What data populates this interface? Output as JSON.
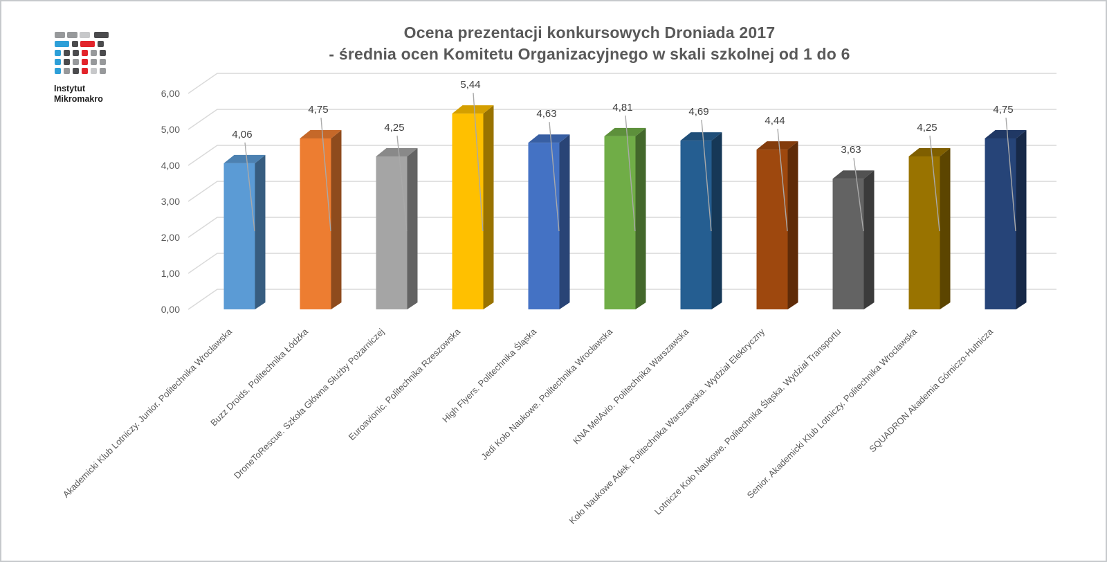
{
  "header": {
    "title_line1": "Ocena prezentacji konkursowych Droniada 2017",
    "title_line2": "- średnia ocen Komitetu Organizacyjnego w skali szkolnej od 1 do 6"
  },
  "logo": {
    "text_line1": "Instytut",
    "text_line2": "Mikromakro",
    "colors": {
      "blue": "#2d9fd8",
      "red": "#e2242b",
      "dark": "#4b4b4d",
      "mid": "#97999b",
      "light": "#c7c8ca"
    }
  },
  "chart_data": {
    "type": "bar",
    "style": "3d-column",
    "title": "Ocena prezentacji konkursowych Droniada 2017 - średnia ocen Komitetu Organizacyjnego w skali szkolnej od 1 do 6",
    "categories": [
      "Akademicki Klub Lotniczy. Junior. Politechnika Wrocławska",
      "Buzz Droids. Politechnika Łódzka",
      "DroneToRescue. Szkoła Główna Służby Pożarniczej",
      "Euroavionic. Politechnika Rzeszowska",
      "High Flyers. Politechnika Śląska",
      "Jedi Koło Naukowe. Politechnika Wrocławska",
      "KNA MelAvio. Politechnika Warszawska",
      "Koło Naukowe Adek. Politechnika Warszawska. Wydział Elektryczny",
      "Lotnicze Koło Naukowe. Politechnika Śląska. Wydział Transportu",
      "Senior. Akademicki Klub Lotniczy. Politechnika Wrocławska",
      "SQUADRON Akademia Górniczo-Hutnicza"
    ],
    "values": [
      4.06,
      4.75,
      4.25,
      5.44,
      4.63,
      4.81,
      4.69,
      4.44,
      3.63,
      4.25,
      4.75
    ],
    "value_labels": [
      "4,06",
      "4,75",
      "4,25",
      "5,44",
      "4,63",
      "4,81",
      "4,69",
      "4,44",
      "3,63",
      "4,25",
      "4,75"
    ],
    "bar_colors": [
      "#5B9BD5",
      "#ED7D31",
      "#A5A5A5",
      "#FFC000",
      "#4472C4",
      "#70AD47",
      "#255E91",
      "#9E480E",
      "#636363",
      "#997300",
      "#264478"
    ],
    "y_tick_labels": [
      "0,00",
      "1,00",
      "2,00",
      "3,00",
      "4,00",
      "5,00",
      "6,00"
    ],
    "ylim": [
      0,
      6
    ],
    "y_step": 1,
    "grid": true,
    "legend": "none",
    "x_label_rotation": 45,
    "colors": {
      "gridline": "#d9d9d9",
      "axis_text": "#595959",
      "value_label": "#404040",
      "leader_line": "#a9a9a9",
      "title_text": "#595959"
    }
  }
}
